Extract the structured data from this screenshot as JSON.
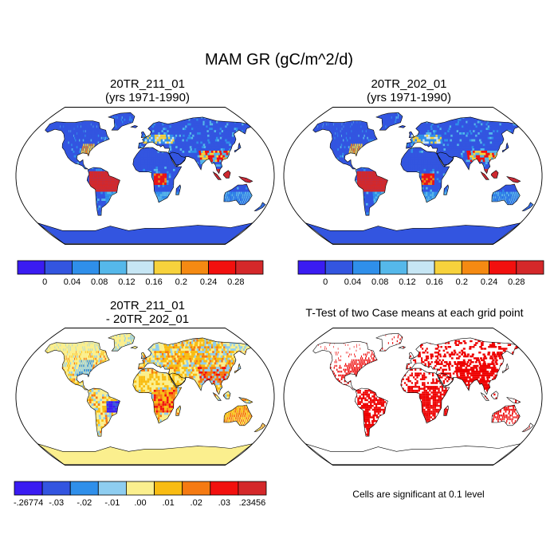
{
  "main_title": "MAM GR (gC/m^2/d)",
  "panels": [
    {
      "line1": "20TR_211_01",
      "line2": "(yrs 1971-1990)"
    },
    {
      "line1": "20TR_202_01",
      "line2": "(yrs 1971-1990)"
    },
    {
      "line1": "20TR_211_01",
      "line2": "- 20TR_202_01"
    },
    {
      "line1": "T-Test of two Case means at each grid point",
      "line2": ""
    }
  ],
  "colorbars": {
    "absolute": {
      "colors": [
        "#3a1cf2",
        "#3355e0",
        "#2f8fea",
        "#55b8ea",
        "#c6e6f4",
        "#f7d23c",
        "#f58a12",
        "#f2100e",
        "#d4282a"
      ],
      "labels": [
        "0",
        "0.04",
        "0.08",
        "0.12",
        "0.16",
        "0.2",
        "0.24",
        "0.28"
      ]
    },
    "difference": {
      "colors": [
        "#3a1cf2",
        "#3355e0",
        "#2f8fea",
        "#8ecdf0",
        "#fbef8e",
        "#f9bc12",
        "#f57a12",
        "#f2100e",
        "#d4282a"
      ],
      "labels": [
        "-.26774",
        "-.03",
        "-.02",
        "-.01",
        ".00",
        ".01",
        ".02",
        ".03",
        ".23456"
      ]
    }
  },
  "note": "Cells are significant at 0.1 level",
  "map_colors": {
    "ocean": "#ffffff",
    "antarctica": "#3355e0",
    "diff_antarctica": "#fbef8e",
    "significant": "#ee0000",
    "coast": "#000000"
  }
}
